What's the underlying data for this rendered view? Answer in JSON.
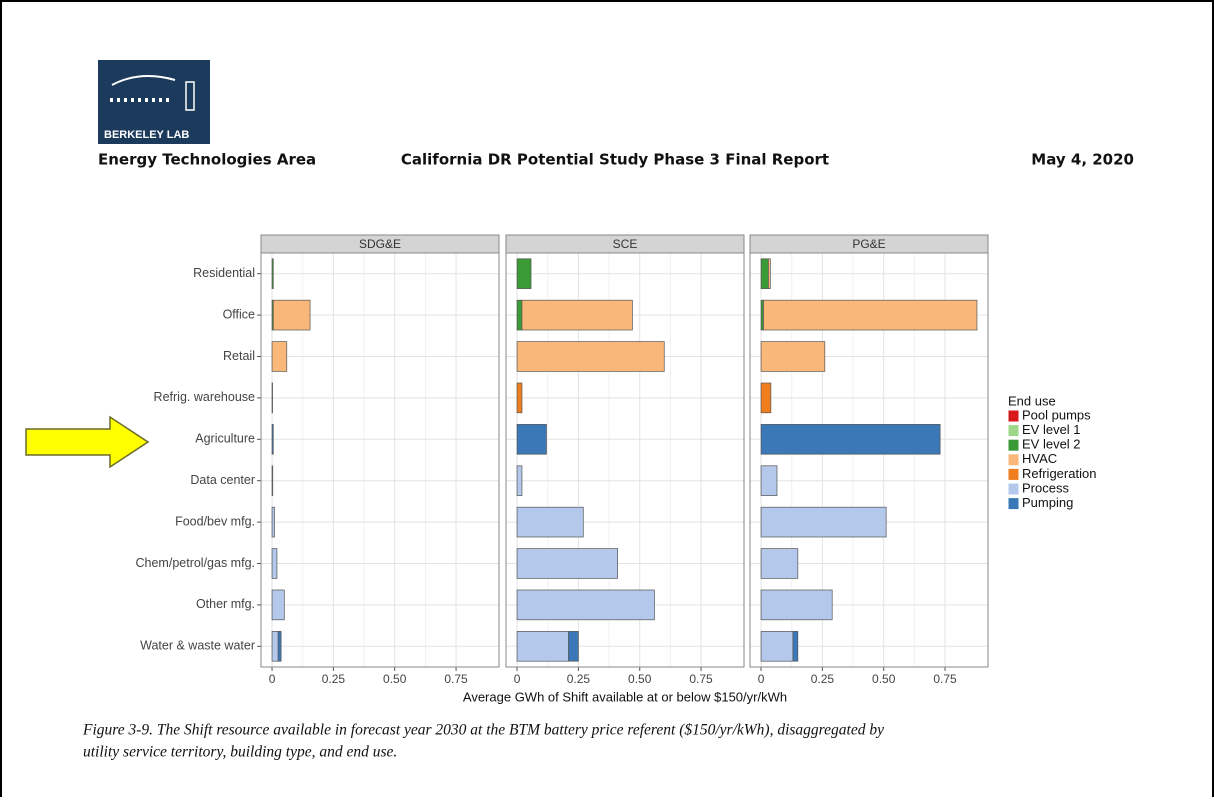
{
  "header": {
    "logo": "BERKELEY LAB",
    "left": "Energy Technologies Area",
    "center": "California DR Potential Study Phase 3 Final Report",
    "right": "May 4, 2020"
  },
  "caption": [
    "Figure 3-9. The Shift resource available in forecast year 2030 at the BTM battery price referent ($150/yr/kWh), disaggregated by",
    "utility service territory, building type, and end use."
  ],
  "chart_data": {
    "type": "bar",
    "orientation": "horizontal",
    "stacked": true,
    "facets": [
      "SDG&E",
      "SCE",
      "PG&E"
    ],
    "categories": [
      "Residential",
      "Office",
      "Retail",
      "Refrig. warehouse",
      "Agriculture",
      "Data center",
      "Food/bev mfg.",
      "Chem/petrol/gas mfg.",
      "Other mfg.",
      "Water & waste water"
    ],
    "xlabel": "Average GWh of Shift available at or below $150/yr/kWh",
    "xlim": [
      -0.045,
      0.925
    ],
    "xticks": [
      0,
      0.25,
      {
        "value": 0.5,
        "label": "0.50"
      },
      0.75
    ],
    "grid": true,
    "legend_title": "End use",
    "legend_position": "right",
    "series": [
      {
        "name": "Pool pumps",
        "color": "#d7191c",
        "values": [
          [
            0,
            0,
            0,
            0,
            0,
            0,
            0,
            0,
            0,
            0
          ],
          [
            0,
            0,
            0,
            0,
            0,
            0,
            0,
            0,
            0,
            0
          ],
          [
            0,
            0,
            0,
            0,
            0,
            0,
            0,
            0,
            0,
            0
          ]
        ]
      },
      {
        "name": "EV level 1",
        "color": "#9ed68a",
        "values": [
          [
            0,
            0,
            0,
            0,
            0,
            0,
            0,
            0,
            0,
            0
          ],
          [
            0,
            0,
            0,
            0,
            0,
            0,
            0,
            0,
            0,
            0
          ],
          [
            0,
            0,
            0,
            0,
            0,
            0,
            0,
            0,
            0,
            0
          ]
        ]
      },
      {
        "name": "EV level 2",
        "color": "#3a9a35",
        "values": [
          [
            0.005,
            0.005,
            0,
            0,
            0,
            0,
            0,
            0,
            0,
            0
          ],
          [
            0.057,
            0.02,
            0,
            0,
            0,
            0,
            0,
            0,
            0,
            0
          ],
          [
            0.03,
            0.01,
            0,
            0,
            0,
            0,
            0,
            0,
            0,
            0
          ]
        ]
      },
      {
        "name": "HVAC",
        "color": "#f9b87a",
        "values": [
          [
            0,
            0.15,
            0.06,
            0,
            0,
            0,
            0,
            0,
            0,
            0
          ],
          [
            0,
            0.45,
            0.6,
            0,
            0,
            0,
            0,
            0,
            0,
            0
          ],
          [
            0.008,
            0.87,
            0.26,
            0,
            0,
            0,
            0,
            0,
            0,
            0
          ]
        ]
      },
      {
        "name": "Refrigeration",
        "color": "#f07e1e",
        "values": [
          [
            0,
            0,
            0,
            0.002,
            0,
            0,
            0,
            0,
            0,
            0
          ],
          [
            0,
            0,
            0,
            0.02,
            0,
            0,
            0,
            0,
            0,
            0
          ],
          [
            0,
            0,
            0,
            0.04,
            0,
            0,
            0,
            0,
            0,
            0
          ]
        ]
      },
      {
        "name": "Process",
        "color": "#b3c8ea",
        "values": [
          [
            0,
            0,
            0,
            0,
            0,
            0.003,
            0.01,
            0.02,
            0.05,
            0.025
          ],
          [
            0,
            0,
            0,
            0,
            0,
            0.02,
            0.27,
            0.41,
            0.56,
            0.21
          ],
          [
            0,
            0,
            0,
            0,
            0,
            0.065,
            0.51,
            0.15,
            0.29,
            0.13
          ]
        ]
      },
      {
        "name": "Pumping",
        "color": "#3a78b7",
        "values": [
          [
            0,
            0,
            0,
            0,
            0.005,
            0,
            0,
            0,
            0,
            0.012
          ],
          [
            0,
            0,
            0,
            0,
            0.12,
            0,
            0,
            0,
            0,
            0.04
          ],
          [
            0,
            0,
            0,
            0,
            0.73,
            0,
            0,
            0,
            0,
            0.02
          ]
        ]
      }
    ]
  }
}
